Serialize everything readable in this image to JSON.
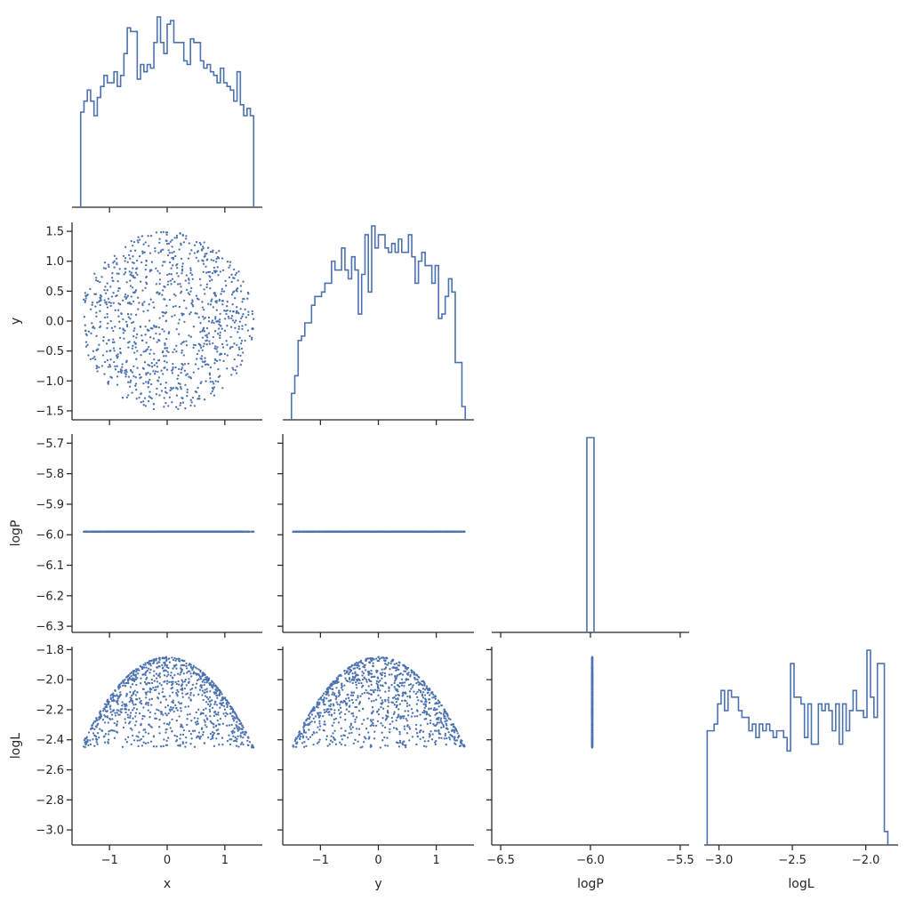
{
  "chart_data": {
    "type": "pairplot",
    "variables": [
      "x",
      "y",
      "logP",
      "logL"
    ],
    "sample_size": 1000,
    "point_color": "#4c72b0",
    "line_color": "#4c72b0",
    "axis_color": "#262626",
    "distribution": {
      "x": "uniform over disc of radius 1.5",
      "y": "uniform over disc of radius 1.5",
      "logP": "constant -5.99",
      "logL": "-1.85 - (x^2 + y^2)/(2*1.87)"
    },
    "axis_labels": {
      "x": "x",
      "y": "y",
      "logP": "logP",
      "logL": "logL"
    },
    "ranges": {
      "x": [
        -1.65,
        1.65
      ],
      "y": [
        -1.65,
        1.65
      ],
      "logP": [
        -6.32,
        -5.67
      ],
      "logP_hist_x": [
        -6.55,
        -5.45
      ],
      "logL": [
        -3.1,
        -1.78
      ]
    },
    "ticks": {
      "x": {
        "values": [
          -1,
          0,
          1
        ],
        "labels": [
          "−1",
          "0",
          "1"
        ]
      },
      "y_row": {
        "values": [
          1.5,
          1.0,
          0.5,
          0.0,
          -0.5,
          -1.0,
          -1.5
        ],
        "labels": [
          "1.5",
          "1.0",
          "0.5",
          "0.0",
          "−0.5",
          "−1.0",
          "−1.5"
        ]
      },
      "y_col": {
        "values": [
          -1,
          0,
          1
        ],
        "labels": [
          "−1",
          "0",
          "1"
        ]
      },
      "logP_row": {
        "values": [
          -5.7,
          -5.8,
          -5.9,
          -6.0,
          -6.1,
          -6.2,
          -6.3
        ],
        "labels": [
          "−5.7",
          "−5.8",
          "−5.9",
          "−6.0",
          "−6.1",
          "−6.2",
          "−6.3"
        ]
      },
      "logP_col": {
        "values": [
          -6.5,
          -6.0,
          -5.5
        ],
        "labels": [
          "−6.5",
          "−6.0",
          "−5.5"
        ]
      },
      "logL_row": {
        "values": [
          -1.8,
          -2.0,
          -2.2,
          -2.4,
          -2.6,
          -2.8,
          -3.0
        ],
        "labels": [
          "−1.8",
          "−2.0",
          "−2.2",
          "−2.4",
          "−2.6",
          "−2.8",
          "−3.0"
        ]
      },
      "logL_col": {
        "values": [
          -3.0,
          -2.5,
          -2.0
        ],
        "labels": [
          "−3.0",
          "−2.5",
          "−2.0"
        ]
      }
    },
    "histograms": {
      "x": {
        "edges": [
          -1.5,
          1.5
        ],
        "counts": [
          26,
          29,
          32,
          29,
          25,
          30,
          33,
          36,
          34,
          34,
          37,
          33,
          36,
          42,
          49,
          48,
          48,
          35,
          39,
          37,
          39,
          38,
          45,
          52,
          45,
          42,
          50,
          51,
          45,
          45,
          45,
          40,
          39,
          46,
          45,
          45,
          40,
          38,
          39,
          37,
          36,
          34,
          38,
          34,
          33,
          32,
          29,
          37,
          28,
          25,
          27,
          25
        ]
      },
      "y": {
        "edges": [
          -1.5,
          1.5
        ],
        "counts": [
          6,
          10,
          18,
          19,
          22,
          22,
          26,
          28,
          28,
          29,
          31,
          31,
          36,
          34,
          34,
          39,
          34,
          32,
          37,
          34,
          24,
          33,
          42,
          29,
          44,
          39,
          42,
          42,
          39,
          38,
          40,
          38,
          41,
          38,
          38,
          42,
          37,
          31,
          36,
          38,
          35,
          35,
          31,
          35,
          23,
          24,
          28,
          32,
          29,
          13,
          13,
          3
        ]
      },
      "logP": {
        "edges": [
          -6.02,
          -5.98
        ],
        "counts": [
          1000
        ]
      },
      "logL": {
        "edges": [
          -3.08,
          -1.85
        ],
        "counts": [
          17,
          17,
          18,
          21,
          23,
          20,
          23,
          22,
          22,
          20,
          19,
          19,
          17,
          18,
          16,
          18,
          17,
          18,
          17,
          16,
          17,
          17,
          16,
          14,
          27,
          22,
          22,
          21,
          16,
          21,
          15,
          15,
          21,
          20,
          21,
          20,
          17,
          21,
          15,
          21,
          17,
          20,
          23,
          20,
          20,
          19,
          29,
          22,
          19,
          27,
          27,
          2
        ]
      }
    }
  }
}
